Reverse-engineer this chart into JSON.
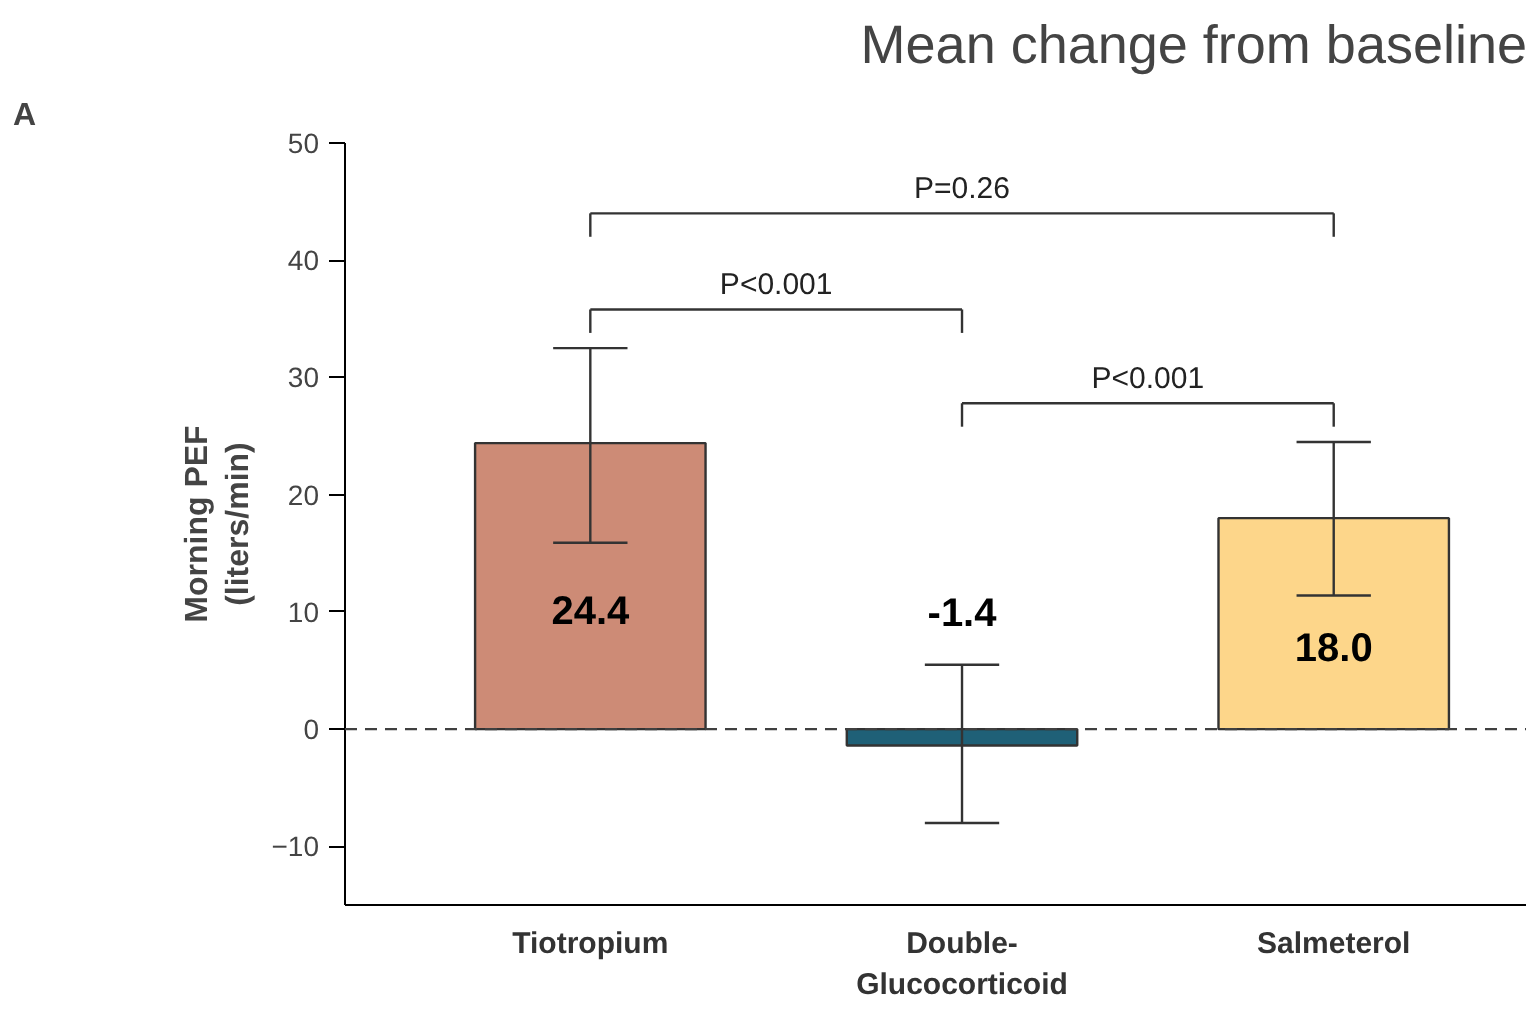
{
  "chart_data": {
    "type": "bar",
    "title": "Mean change from baseline",
    "ylabel": "Morning PEF\n(liters/min)",
    "categories": [
      "Tiotropium",
      "Double-\nGlucocorticoid",
      "Salmeterol"
    ],
    "values": [
      24.4,
      -1.4,
      18.0
    ],
    "colors": [
      "#cd8b76",
      "#1f6077",
      "#fdd68a"
    ],
    "errors": [
      [
        15.9,
        32.5
      ],
      [
        -8.0,
        5.5
      ],
      [
        11.4,
        24.5
      ]
    ],
    "value_labels": [
      "24.4",
      "-1.4",
      "18.0"
    ],
    "ylim": [
      -15,
      50
    ],
    "yticks": [
      -10,
      0,
      10,
      20,
      30,
      40,
      50
    ],
    "ref_lines": [
      {
        "axis": "y",
        "value": 0,
        "color": "#404040",
        "line_style": "dashed"
      }
    ],
    "annotations": [
      "A",
      "P=0.26",
      "P<0.001",
      "P<0.001"
    ],
    "grid": false
  }
}
